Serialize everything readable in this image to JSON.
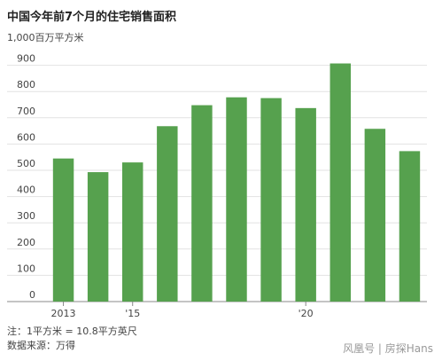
{
  "title": "中国今年前7个月的住宅销售面积",
  "unit_label": "1,000百万平方米",
  "notes": {
    "line1": "注：1平方米 = 10.8平方英尺",
    "line2": "数据来源：万得"
  },
  "watermark": "风凰号 | 房探Hans",
  "chart_data": {
    "type": "bar",
    "title": "中国今年前7个月的住宅销售面积",
    "ylabel": "1,000百万平方米",
    "categories": [
      "2013",
      "2014",
      "2015",
      "2016",
      "2017",
      "2018",
      "2019",
      "2020",
      "2021",
      "2022",
      "2023"
    ],
    "x_tick_labels": [
      {
        "category": "2013",
        "label": "2013"
      },
      {
        "category": "2015",
        "label": "'15"
      },
      {
        "category": "2020",
        "label": "'20"
      }
    ],
    "values": [
      545,
      493,
      530,
      668,
      748,
      778,
      775,
      737,
      907,
      658,
      573
    ],
    "ylim": [
      0,
      1000
    ],
    "yticks": [
      0,
      100,
      200,
      300,
      400,
      500,
      600,
      700,
      800,
      900
    ],
    "bar_color": "#56a14e",
    "grid": true
  }
}
